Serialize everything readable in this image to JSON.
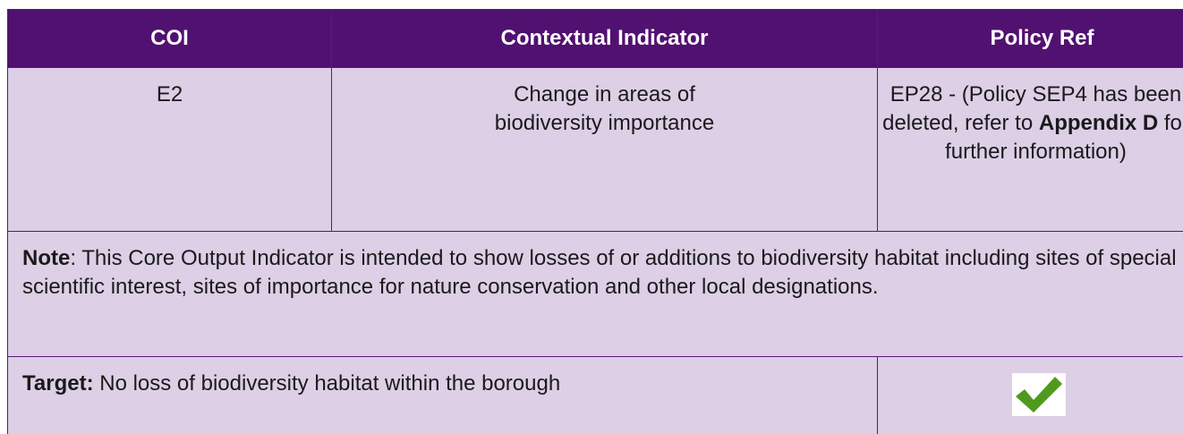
{
  "table": {
    "header": [
      "COI",
      "Contextual Indicator",
      "Policy Ref"
    ],
    "row": {
      "coi": "E2",
      "indicator_lines": [
        "Change in areas of",
        "biodiversity importance"
      ],
      "policy_parts": [
        "EP28 - (Policy SEP4 has been deleted, refer to ",
        "Appendix D",
        " for further information)"
      ]
    },
    "note": {
      "label": "Note",
      "text": ": This Core Output Indicator is intended to show losses of or additions to biodiversity habitat including sites of special scientific interest, sites of importance for nature conservation and other local designations."
    },
    "target": {
      "label": "Target:",
      "text": " No loss of biodiversity habitat within the borough"
    }
  }
}
